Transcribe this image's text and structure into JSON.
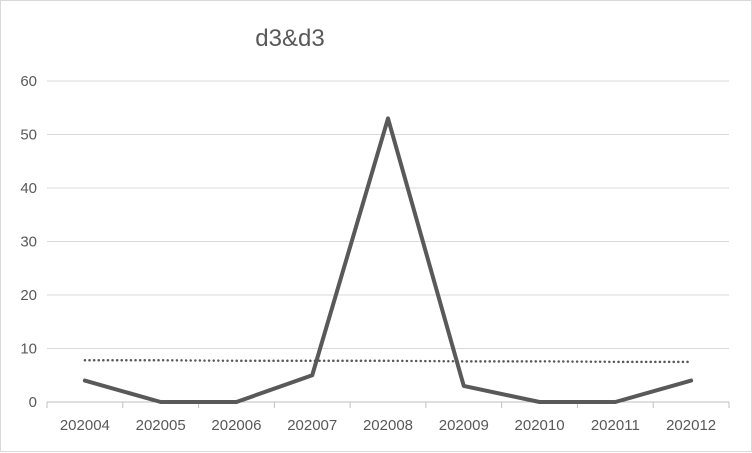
{
  "chart_data": {
    "type": "line",
    "title": "d3&d3",
    "xlabel": "",
    "ylabel": "",
    "categories": [
      "202004",
      "202005",
      "202006",
      "202007",
      "202008",
      "202009",
      "202010",
      "202011",
      "202012"
    ],
    "series": [
      {
        "values": [
          4,
          0,
          0,
          5,
          53,
          3,
          0,
          0,
          4
        ],
        "style": "solid",
        "color": "#595959"
      },
      {
        "values": [
          7.8,
          7.8,
          7.7,
          7.7,
          7.7,
          7.6,
          7.6,
          7.5,
          7.5
        ],
        "style": "dotted",
        "color": "#595959",
        "kind": "trendline"
      }
    ],
    "ylim": [
      0,
      60
    ],
    "yticks": [
      0,
      10,
      20,
      30,
      40,
      50,
      60
    ],
    "grid": true,
    "legend": "none",
    "gridColor": "#d9d9d9",
    "axisColor": "#bfbfbf"
  }
}
